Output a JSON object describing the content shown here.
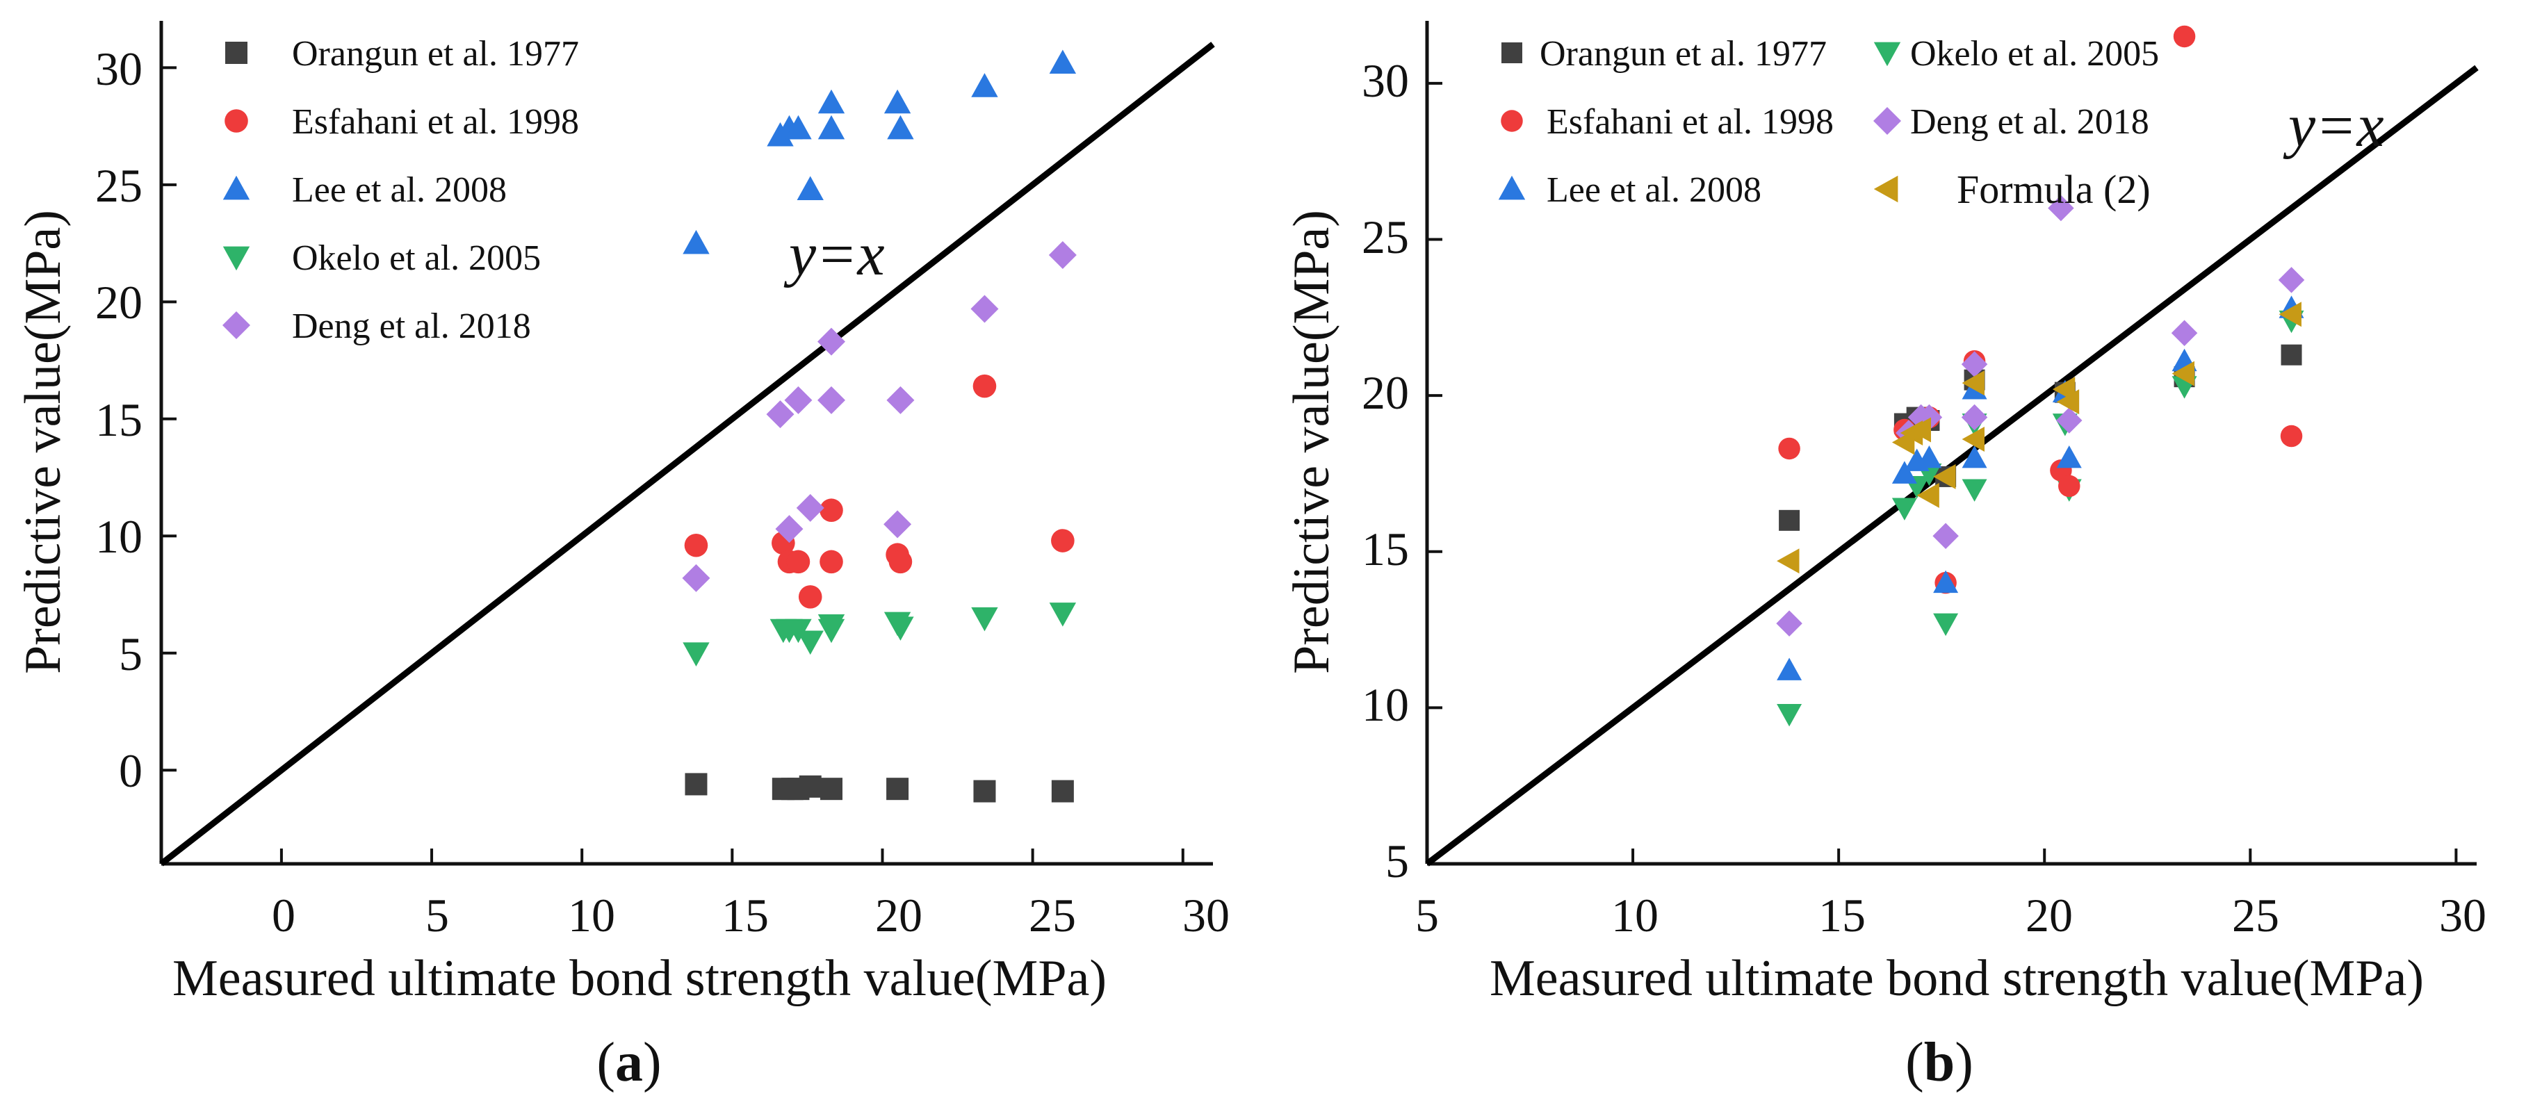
{
  "colors": {
    "orangun": "#404040",
    "esfahani": "#ee3b3b",
    "lee": "#2a78e0",
    "okelo": "#2eb369",
    "deng": "#b07ee3",
    "formula": "#c79a16"
  },
  "series_meta": [
    {
      "key": "orangun",
      "label": "Orangun et al. 1977",
      "marker": "square"
    },
    {
      "key": "esfahani",
      "label": "Esfahani et al. 1998",
      "marker": "circle"
    },
    {
      "key": "lee",
      "label": "Lee et al. 2008",
      "marker": "triangle-up"
    },
    {
      "key": "okelo",
      "label": "Okelo et al. 2005",
      "marker": "triangle-down"
    },
    {
      "key": "deng",
      "label": "Deng et al. 2018",
      "marker": "diamond"
    },
    {
      "key": "formula",
      "label": "Formula (2)",
      "marker": "triangle-left"
    }
  ],
  "chart_data": [
    {
      "type": "scatter",
      "panel_label": "a",
      "xlabel": "Measured ultimate bond strength value(MPa)",
      "ylabel": "Predictive value(MPa)",
      "xlim": [
        -4,
        31
      ],
      "ylim": [
        -4,
        32
      ],
      "xticks": [
        0,
        5,
        10,
        15,
        20,
        25,
        30
      ],
      "yticks": [
        0,
        5,
        10,
        15,
        20,
        25,
        30
      ],
      "reference_line": "y=x",
      "legend_position": "top-left",
      "series": [
        {
          "key": "orangun",
          "name": "Orangun et al. 1977",
          "x": [
            13.8,
            16.7,
            17.0,
            17.2,
            17.6,
            18.3,
            20.5,
            23.4,
            26.0
          ],
          "y": [
            -0.6,
            -0.8,
            -0.8,
            -0.8,
            -0.7,
            -0.8,
            -0.8,
            -0.9,
            -0.9
          ]
        },
        {
          "key": "esfahani",
          "name": "Esfahani et al. 1998",
          "x": [
            13.8,
            16.7,
            16.9,
            17.2,
            17.6,
            18.3,
            18.3,
            20.5,
            20.6,
            23.4,
            26.0
          ],
          "y": [
            9.6,
            9.7,
            8.9,
            8.9,
            7.4,
            11.1,
            8.9,
            9.2,
            8.9,
            16.4,
            9.8
          ]
        },
        {
          "key": "lee",
          "name": "Lee et al. 2008",
          "x": [
            13.8,
            16.6,
            16.9,
            17.2,
            17.6,
            18.3,
            18.3,
            20.5,
            20.6,
            23.4,
            26.0
          ],
          "y": [
            22.5,
            27.1,
            27.4,
            27.4,
            24.8,
            28.5,
            27.4,
            28.5,
            27.4,
            29.2,
            30.2
          ]
        },
        {
          "key": "okelo",
          "name": "Okelo et al. 2005",
          "x": [
            13.8,
            16.7,
            16.9,
            17.2,
            17.6,
            18.3,
            18.3,
            20.5,
            20.6,
            23.4,
            26.0
          ],
          "y": [
            5.0,
            6.0,
            6.0,
            6.0,
            5.5,
            6.2,
            6.0,
            6.3,
            6.1,
            6.5,
            6.7
          ]
        },
        {
          "key": "deng",
          "name": "Deng et al. 2018",
          "x": [
            13.8,
            16.6,
            16.9,
            17.2,
            17.6,
            18.3,
            18.3,
            20.5,
            20.6,
            23.4,
            26.0
          ],
          "y": [
            8.2,
            15.2,
            10.3,
            15.8,
            11.2,
            18.3,
            15.8,
            10.5,
            15.8,
            19.7,
            22.0
          ]
        }
      ]
    },
    {
      "type": "scatter",
      "panel_label": "b",
      "xlabel": "Measured ultimate bond strength value(MPa)",
      "ylabel": "Predictive value(MPa)",
      "xlim": [
        5,
        30.5
      ],
      "ylim": [
        5,
        32
      ],
      "xticks": [
        5,
        10,
        15,
        20,
        25,
        30
      ],
      "yticks": [
        5,
        10,
        15,
        20,
        25,
        30
      ],
      "reference_line": "y=x",
      "legend_position": "top-left",
      "series": [
        {
          "key": "orangun",
          "name": "Orangun et al. 1977",
          "x": [
            13.8,
            16.6,
            16.9,
            17.2,
            17.6,
            18.3,
            20.5,
            23.4,
            26.0
          ],
          "y": [
            16.0,
            19.1,
            19.3,
            19.2,
            17.4,
            20.5,
            20.1,
            20.6,
            21.3
          ]
        },
        {
          "key": "okelo",
          "name": "Okelo et al. 2005",
          "x": [
            13.8,
            16.6,
            16.9,
            17.2,
            17.6,
            18.3,
            18.3,
            20.5,
            20.6,
            23.4,
            26.0
          ],
          "y": [
            9.8,
            16.4,
            17.1,
            17.5,
            12.7,
            17.0,
            19.1,
            19.1,
            17.0,
            20.3,
            22.4
          ]
        },
        {
          "key": "esfahani",
          "name": "Esfahani et al. 1998",
          "x": [
            13.8,
            16.6,
            17.2,
            17.6,
            18.3,
            20.4,
            20.6,
            23.4,
            26.0
          ],
          "y": [
            18.3,
            18.9,
            19.3,
            14.0,
            21.1,
            17.6,
            17.1,
            31.5,
            18.7
          ]
        },
        {
          "key": "deng",
          "name": "Deng et al. 2018",
          "x": [
            13.8,
            16.7,
            17.0,
            17.2,
            17.6,
            18.3,
            18.3,
            20.4,
            20.6,
            23.4,
            26.0
          ],
          "y": [
            12.7,
            18.8,
            19.3,
            19.3,
            15.5,
            21.0,
            19.3,
            26.0,
            19.2,
            22.0,
            23.7
          ]
        },
        {
          "key": "lee",
          "name": "Lee et al. 2008",
          "x": [
            13.8,
            16.6,
            16.9,
            17.2,
            17.6,
            18.3,
            18.3,
            20.5,
            20.6,
            23.4,
            26.0
          ],
          "y": [
            11.2,
            17.5,
            17.9,
            18.0,
            14.0,
            20.2,
            18.0,
            20.1,
            18.0,
            21.1,
            22.8
          ]
        },
        {
          "key": "formula",
          "name": "Formula (2)",
          "x": [
            13.8,
            16.6,
            16.8,
            17.0,
            17.2,
            17.6,
            18.3,
            18.3,
            20.5,
            20.6,
            23.4,
            26.0
          ],
          "y": [
            14.7,
            18.5,
            18.8,
            18.9,
            16.8,
            17.4,
            20.4,
            18.6,
            20.2,
            19.8,
            20.7,
            22.6
          ]
        }
      ]
    }
  ]
}
